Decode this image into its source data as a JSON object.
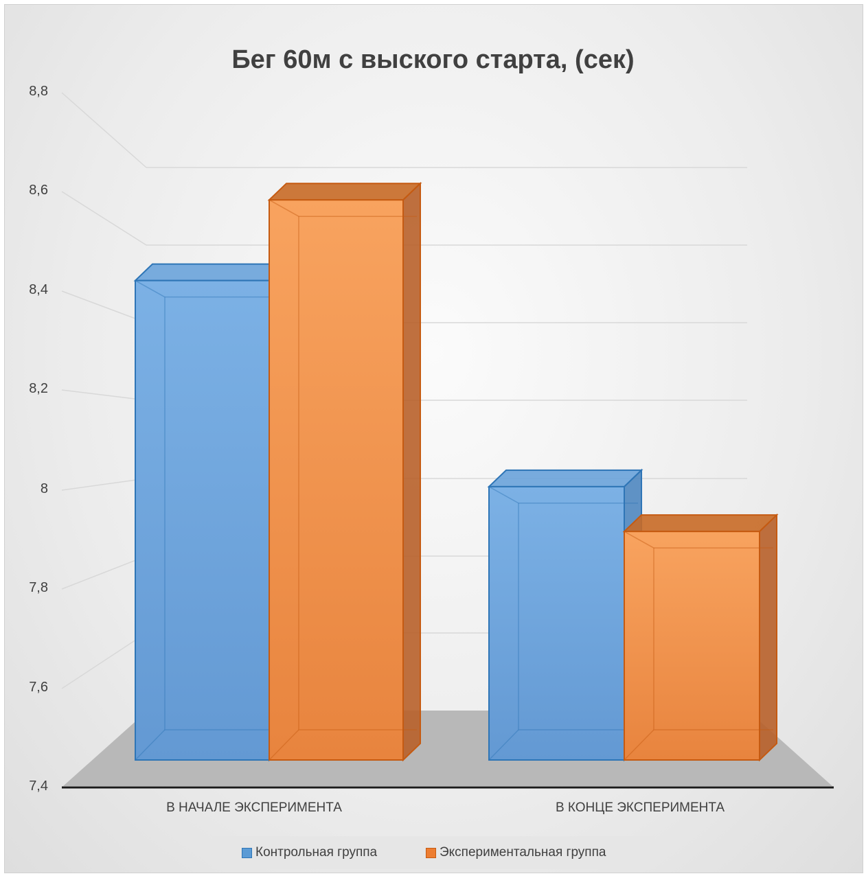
{
  "chart_data": {
    "type": "bar",
    "title": "Бег 60м с выского старта, (сек)",
    "categories": [
      "В НАЧАЛЕ ЭКСПЕРИМЕНТА",
      "В КОНЦЕ ЭКСПЕРИМЕНТА"
    ],
    "series": [
      {
        "name": "Контрольная группа",
        "values": [
          8.47,
          8.01
        ],
        "color": "#5b9bd5"
      },
      {
        "name": "Экспериментальная группа",
        "values": [
          8.65,
          7.91
        ],
        "color": "#ed7d31"
      }
    ],
    "ylim": [
      7.4,
      8.8
    ],
    "yticks": [
      "7,4",
      "7,6",
      "7,8",
      "8",
      "8,2",
      "8,4",
      "8,6",
      "8,8"
    ],
    "grid": true,
    "legend_position": "bottom",
    "style": "3d-column"
  }
}
